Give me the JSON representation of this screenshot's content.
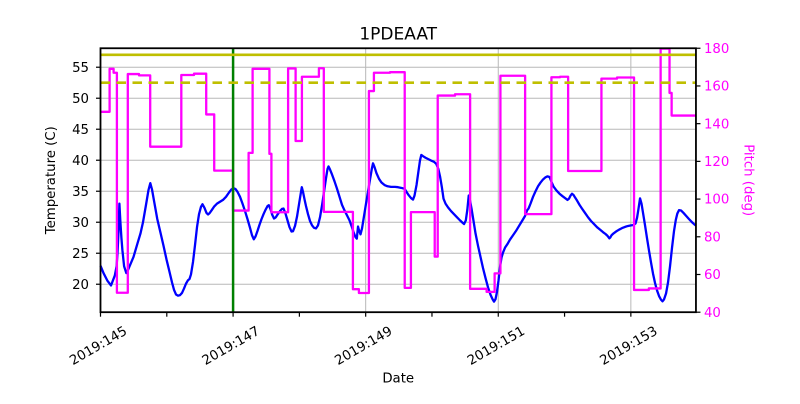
{
  "title": "1PDEAAT",
  "chart_data": {
    "type": "line",
    "title": "1PDEAAT",
    "xlabel": "Date",
    "ylabel_left": "Temperature (C)",
    "ylabel_right": "Pitch (deg)",
    "xlim": [
      145.0,
      153.982
    ],
    "x_major_ticks": [
      145,
      147,
      149,
      151,
      153
    ],
    "x_major_tick_labels": [
      "2019:145",
      "2019:147",
      "2019:149",
      "2019:151",
      "2019:153"
    ],
    "x_minor_ticks": [
      146,
      148,
      150,
      152
    ],
    "ylim_left": [
      15.49,
      58.06
    ],
    "yticks_left": [
      20,
      25,
      30,
      35,
      40,
      45,
      50,
      55
    ],
    "ylim_right": [
      40,
      180
    ],
    "yticks_right": [
      40,
      60,
      80,
      100,
      120,
      140,
      160,
      180
    ],
    "grid": "major-left-and-x",
    "legend": "none",
    "series": [
      {
        "name": "temperature",
        "axis": "left",
        "type": "line",
        "color": "#0000ff",
        "x": [
          145.0,
          145.0453,
          145.1026,
          145.1584,
          145.2157,
          145.2429,
          145.2564,
          145.2715,
          145.2851,
          145.3002,
          145.3153,
          145.3304,
          145.356,
          145.3892,
          145.4148,
          145.442,
          145.4978,
          145.5582,
          145.6034,
          145.6411,
          145.6864,
          145.7241,
          145.7512,
          145.7769,
          145.8101,
          145.8568,
          145.9051,
          145.9504,
          145.9956,
          146.0409,
          146.0786,
          146.1088,
          146.1389,
          146.1691,
          146.1993,
          146.2294,
          146.2596,
          146.2898,
          146.32,
          146.3426,
          146.3652,
          146.3954,
          146.4256,
          146.4557,
          146.4859,
          146.5161,
          146.5387,
          146.5689,
          146.599,
          146.6217,
          146.6443,
          146.6745,
          146.7122,
          146.7574,
          146.8027,
          146.8479,
          146.8932,
          146.9385,
          146.9762,
          147.0063,
          147.0365,
          147.0667,
          147.1044,
          147.1421,
          147.1798,
          147.2175,
          147.2552,
          147.2854,
          147.3126,
          147.3382,
          147.3684,
          147.3986,
          147.4287,
          147.4589,
          147.4891,
          147.5192,
          147.5388,
          147.5645,
          147.5901,
          147.6173,
          147.6444,
          147.6746,
          147.7078,
          147.738,
          147.7606,
          147.7908,
          147.8209,
          147.8511,
          147.8813,
          147.9039,
          147.9341,
          147.9642,
          147.9944,
          148.0201,
          148.0367,
          148.0548,
          148.0774,
          148.1,
          148.1302,
          148.1604,
          148.1905,
          148.2207,
          148.2509,
          148.281,
          148.3112,
          148.3414,
          148.3715,
          148.4017,
          148.4243,
          148.4394,
          148.4621,
          148.4922,
          148.5299,
          148.5677,
          148.6054,
          148.6431,
          148.6808,
          148.7185,
          148.7562,
          148.7864,
          148.8166,
          148.8467,
          148.8663,
          148.8844,
          148.8995,
          148.9222,
          148.9448,
          148.975,
          149.0051,
          149.0353,
          149.0655,
          149.0926,
          149.1107,
          149.1334,
          149.1635,
          149.2012,
          149.239,
          149.2842,
          149.3295,
          149.3823,
          149.4426,
          149.4879,
          149.5331,
          149.5859,
          149.6161,
          149.6463,
          149.684,
          149.7141,
          149.7368,
          149.7669,
          149.7971,
          149.8197,
          149.8393,
          149.865,
          149.9027,
          149.9404,
          149.9857,
          150.0309,
          150.0656,
          150.0958,
          150.1214,
          150.1486,
          150.1742,
          150.2044,
          150.2421,
          150.2874,
          150.3326,
          150.3779,
          150.4231,
          150.4533,
          150.4835,
          150.5106,
          150.5333,
          150.5544,
          150.574,
          150.5966,
          150.6268,
          150.657,
          150.6947,
          150.7324,
          150.7701,
          150.8078,
          150.8455,
          150.8832,
          150.9134,
          150.936,
          150.9587,
          150.9813,
          151.0039,
          151.0266,
          151.0492,
          151.0718,
          151.102,
          151.1397,
          151.1774,
          151.2227,
          151.2679,
          151.3132,
          151.3584,
          151.4037,
          151.4339,
          151.4565,
          151.4866,
          151.5244,
          151.5621,
          151.5998,
          151.6375,
          151.6752,
          151.7129,
          151.7431,
          151.7733,
          151.8034,
          151.8336,
          151.8789,
          151.9241,
          151.9694,
          152.0071,
          152.0448,
          152.0674,
          152.0901,
          152.1127,
          152.1353,
          152.1579,
          152.1881,
          152.2258,
          152.2635,
          152.3088,
          152.3541,
          152.3993,
          152.4446,
          152.4898,
          152.5351,
          152.5803,
          152.618,
          152.6482,
          152.6754,
          152.6905,
          152.7086,
          152.7387,
          152.7764,
          152.8217,
          152.8669,
          152.9122,
          152.9575,
          153.0027,
          153.0404,
          153.0706,
          153.0932,
          153.1159,
          153.1385,
          153.1611,
          153.1837,
          153.2139,
          153.2441,
          153.2742,
          153.3044,
          153.3346,
          153.3648,
          153.3949,
          153.4251,
          153.4553,
          153.4779,
          153.5005,
          153.5307,
          153.5609,
          153.591,
          153.6212,
          153.6514,
          153.6785,
          153.7012,
          153.7268,
          153.757,
          153.7947,
          153.8324,
          153.8777,
          153.9229,
          153.9531,
          153.9817
        ],
        "y": [
          23.0,
          21.8,
          20.6,
          19.8,
          21.4,
          22.9,
          25.0,
          28.5,
          33.0,
          30.0,
          27.5,
          25.5,
          22.9,
          21.8,
          22.3,
          23.0,
          24.4,
          26.6,
          28.2,
          30.0,
          32.8,
          35.2,
          36.3,
          35.3,
          33.3,
          30.5,
          28.3,
          26.2,
          24.0,
          22.0,
          20.3,
          19.1,
          18.35,
          18.15,
          18.25,
          18.6,
          19.3,
          20.1,
          20.65,
          20.85,
          21.6,
          23.6,
          26.3,
          29.2,
          31.3,
          32.5,
          32.9,
          32.3,
          31.5,
          31.25,
          31.45,
          31.9,
          32.5,
          33.0,
          33.3,
          33.6,
          34.1,
          34.8,
          35.3,
          35.5,
          35.35,
          34.9,
          34.1,
          33.0,
          31.8,
          30.5,
          29.1,
          27.9,
          27.25,
          27.7,
          28.6,
          29.6,
          30.5,
          31.3,
          32.0,
          32.6,
          32.75,
          32.1,
          31.2,
          30.6,
          30.8,
          31.3,
          31.8,
          32.15,
          32.2,
          31.4,
          30.3,
          29.2,
          28.5,
          28.55,
          29.4,
          30.9,
          32.9,
          34.6,
          35.65,
          34.9,
          33.7,
          32.6,
          31.3,
          30.2,
          29.5,
          29.1,
          29.0,
          29.5,
          30.8,
          32.7,
          34.9,
          37.1,
          38.6,
          39.0,
          38.5,
          37.7,
          36.6,
          35.4,
          34.1,
          32.8,
          31.9,
          31.1,
          30.3,
          29.4,
          28.4,
          27.6,
          27.35,
          29.3,
          28.7,
          28.05,
          29.0,
          31.0,
          33.0,
          34.9,
          36.9,
          38.6,
          39.5,
          38.9,
          37.9,
          37.0,
          36.4,
          36.0,
          35.8,
          35.7,
          35.7,
          35.65,
          35.55,
          35.4,
          34.9,
          34.4,
          33.9,
          33.65,
          34.3,
          36.0,
          38.3,
          40.0,
          40.85,
          40.65,
          40.4,
          40.2,
          39.95,
          39.75,
          39.4,
          38.6,
          37.4,
          35.7,
          33.8,
          33.0,
          32.4,
          31.8,
          31.3,
          30.8,
          30.3,
          30.0,
          29.7,
          30.3,
          32.0,
          34.3,
          33.5,
          32.2,
          30.2,
          28.2,
          26.2,
          24.4,
          22.6,
          21.0,
          19.5,
          18.3,
          17.6,
          17.2,
          17.6,
          18.8,
          20.6,
          22.8,
          24.3,
          25.1,
          25.9,
          26.5,
          27.2,
          27.9,
          28.6,
          29.4,
          30.2,
          31.0,
          31.9,
          32.2,
          33.0,
          34.1,
          35.0,
          35.8,
          36.4,
          36.9,
          37.25,
          37.4,
          37.3,
          36.5,
          35.75,
          35.1,
          34.6,
          34.2,
          33.9,
          33.6,
          33.8,
          34.3,
          34.6,
          34.4,
          34.0,
          33.5,
          32.8,
          32.2,
          31.5,
          30.8,
          30.2,
          29.7,
          29.2,
          28.8,
          28.4,
          28.1,
          27.8,
          27.4,
          27.55,
          27.9,
          28.2,
          28.5,
          28.8,
          29.05,
          29.25,
          29.4,
          29.5,
          29.55,
          29.8,
          30.7,
          32.2,
          33.85,
          33.0,
          31.5,
          29.5,
          27.4,
          25.4,
          23.5,
          21.7,
          20.2,
          19.0,
          18.1,
          17.5,
          17.25,
          17.55,
          18.5,
          20.3,
          22.9,
          25.9,
          28.6,
          30.4,
          31.4,
          31.95,
          31.9,
          31.5,
          31.05,
          30.5,
          30.0,
          29.7,
          29.45
        ]
      },
      {
        "name": "pitch",
        "axis": "right",
        "type": "step",
        "color": "#ff00ff",
        "x": [
          145.0,
          145.1373,
          145.1976,
          145.2474,
          145.4118,
          145.5808,
          145.7497,
          146.2189,
          146.4105,
          146.5945,
          146.7152,
          146.9988,
          147.2341,
          147.2945,
          147.5479,
          147.5781,
          147.83,
          147.9431,
          148.0382,
          148.2946,
          148.3685,
          148.8075,
          148.898,
          149.0489,
          149.1243,
          149.3672,
          149.5889,
          149.6825,
          150.0415,
          150.0867,
          150.3477,
          150.5755,
          150.8244,
          150.9451,
          151.0326,
          151.4052,
          151.8019,
          151.9317,
          152.0539,
          152.5562,
          152.7915,
          153.048,
          153.2712,
          153.4492,
          153.5835,
          153.6152
        ],
        "y": [
          146.3,
          169.1,
          167.0,
          50.3,
          166.3,
          165.6,
          127.8,
          165.8,
          166.5,
          144.9,
          115.1,
          93.9,
          124.5,
          169.1,
          124.0,
          93.0,
          169.3,
          130.8,
          164.9,
          169.4,
          93.2,
          52.2,
          50.2,
          157.3,
          167.0,
          167.3,
          52.9,
          93.1,
          69.5,
          154.9,
          155.6,
          52.4,
          50.8,
          60.6,
          165.4,
          92.0,
          164.6,
          164.9,
          114.9,
          163.9,
          164.5,
          51.8,
          52.6,
          179.8,
          156.3,
          144.3
        ]
      }
    ],
    "limit_lines": [
      {
        "name": "yellow-limit",
        "value": 57.0,
        "axis": "left",
        "color": "#bfbf00",
        "style": "solid"
      },
      {
        "name": "planning-limit",
        "value": 52.5,
        "axis": "left",
        "color": "#bfbf00",
        "style": "dashed"
      }
    ],
    "vlines": [
      {
        "name": "load-start",
        "x": 147.0,
        "color": "#008000"
      }
    ],
    "colors": {
      "temperature": "#0000ff",
      "pitch": "#ff00ff",
      "limit": "#bfbf00",
      "vline": "#008000",
      "grid": "#b8b8b8",
      "text": "#000000"
    }
  }
}
